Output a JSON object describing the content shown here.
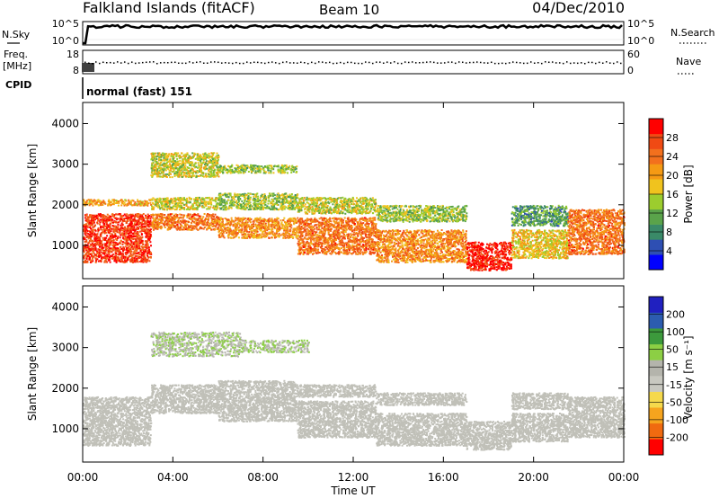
{
  "header": {
    "title": "Falkland Islands (fitACF)",
    "beam": "Beam 10",
    "date": "04/Dec/2010"
  },
  "panels": {
    "nsky": {
      "label": "N.Sky",
      "tick_top": "10^5",
      "tick_bottom": "10^0",
      "right_label": "N.Search",
      "right_tick_top": "10^5",
      "right_tick_bottom": "10^0"
    },
    "freq": {
      "label_top": "Freq.",
      "label_unit": "[MHz]",
      "tick_top": "18",
      "tick_bottom": "8",
      "right_label": "Nave",
      "right_tick_top": "60",
      "right_tick_bottom": "0"
    },
    "cpid": {
      "label": "CPID",
      "mode": "normal (fast) 151"
    }
  },
  "colors": {
    "power_scale": [
      "#0000ff",
      "#2e4fb3",
      "#3a8a68",
      "#5aa34a",
      "#9ccd2e",
      "#f0c31e",
      "#f59a14",
      "#f3701d",
      "#f04a14",
      "#ff0000"
    ],
    "velocity_scale": [
      "#ff0000",
      "#f06a10",
      "#f6a41e",
      "#f5d94c",
      "#c8c8c0",
      "#b4b4ac",
      "#8ccf44",
      "#3c9a3c",
      "#2c5cb0",
      "#2020c0"
    ],
    "ground_scatter": "#c0c0b8"
  },
  "chart_data": [
    {
      "type": "heatmap",
      "name": "power",
      "ylabel": "Slant Range [km]",
      "xlabel": "",
      "ylim": [
        180,
        4520
      ],
      "xlim": [
        0,
        24
      ],
      "yticks": [
        1000,
        2000,
        3000,
        4000
      ],
      "xticks": [
        0,
        4,
        8,
        12,
        16,
        20,
        24
      ],
      "colorbar": {
        "label": "Power [dB]",
        "range": [
          0,
          32
        ],
        "ticks": [
          "4",
          "8",
          "12",
          "16",
          "20",
          "24",
          "28"
        ]
      },
      "bands": [
        {
          "start": 0,
          "end": 3,
          "ranges": [
            [
              600,
              1800
            ],
            [
              2000,
              2150
            ]
          ],
          "power_db": 28
        },
        {
          "start": 3,
          "end": 6,
          "ranges": [
            [
              1400,
              1800
            ],
            [
              1900,
              2200
            ],
            [
              2700,
              3300
            ]
          ],
          "power_db": 24
        },
        {
          "start": 6,
          "end": 9.5,
          "ranges": [
            [
              1200,
              1700
            ],
            [
              1900,
              2300
            ],
            [
              2800,
              3000
            ]
          ],
          "power_db": 22
        },
        {
          "start": 9.5,
          "end": 13,
          "ranges": [
            [
              800,
              1700
            ],
            [
              1800,
              2200
            ]
          ],
          "power_db": 24
        },
        {
          "start": 13,
          "end": 17,
          "ranges": [
            [
              600,
              1400
            ],
            [
              1600,
              2000
            ]
          ],
          "power_db": 22
        },
        {
          "start": 17,
          "end": 19,
          "ranges": [
            [
              400,
              1100
            ]
          ],
          "power_db": 30
        },
        {
          "start": 19,
          "end": 21.5,
          "ranges": [
            [
              700,
              1400
            ],
            [
              1500,
              2000
            ]
          ],
          "power_db": 18
        },
        {
          "start": 21.5,
          "end": 24,
          "ranges": [
            [
              800,
              1900
            ]
          ],
          "power_db": 24
        }
      ]
    },
    {
      "type": "heatmap",
      "name": "velocity",
      "ylabel": "Slant Range [km]",
      "xlabel": "Time UT",
      "ylim": [
        180,
        4520
      ],
      "xlim": [
        0,
        24
      ],
      "yticks": [
        1000,
        2000,
        3000,
        4000
      ],
      "xticks": [
        0,
        4,
        8,
        12,
        16,
        20,
        24
      ],
      "xtick_labels": [
        "00:00",
        "04:00",
        "08:00",
        "12:00",
        "16:00",
        "20:00",
        "00:00"
      ],
      "colorbar": {
        "label": "Velocity [m s⁻¹]",
        "range": [
          -250,
          250
        ],
        "ticks": [
          "-200",
          "-100",
          "-50",
          "-15",
          "15",
          "50",
          "100",
          "200"
        ]
      },
      "ground_scatter_bands": [
        {
          "start": 0,
          "end": 3,
          "ranges": [
            [
              600,
              1800
            ]
          ]
        },
        {
          "start": 3,
          "end": 6,
          "ranges": [
            [
              1400,
              2100
            ]
          ]
        },
        {
          "start": 6,
          "end": 9.5,
          "ranges": [
            [
              1200,
              2200
            ]
          ]
        },
        {
          "start": 9.5,
          "end": 13,
          "ranges": [
            [
              800,
              1700
            ],
            [
              1800,
              2100
            ]
          ]
        },
        {
          "start": 13,
          "end": 17,
          "ranges": [
            [
              600,
              1400
            ],
            [
              1600,
              1900
            ]
          ]
        },
        {
          "start": 17,
          "end": 19,
          "ranges": [
            [
              500,
              1200
            ]
          ]
        },
        {
          "start": 19,
          "end": 21.5,
          "ranges": [
            [
              700,
              1400
            ],
            [
              1500,
              1900
            ]
          ]
        },
        {
          "start": 21.5,
          "end": 24,
          "ranges": [
            [
              800,
              1800
            ]
          ]
        }
      ],
      "ionospheric_bands": [
        {
          "start": 3,
          "end": 7,
          "ranges": [
            [
              2800,
              3400
            ]
          ],
          "velocity": 30
        },
        {
          "start": 7,
          "end": 10,
          "ranges": [
            [
              2900,
              3200
            ]
          ],
          "velocity": 40
        }
      ]
    }
  ]
}
